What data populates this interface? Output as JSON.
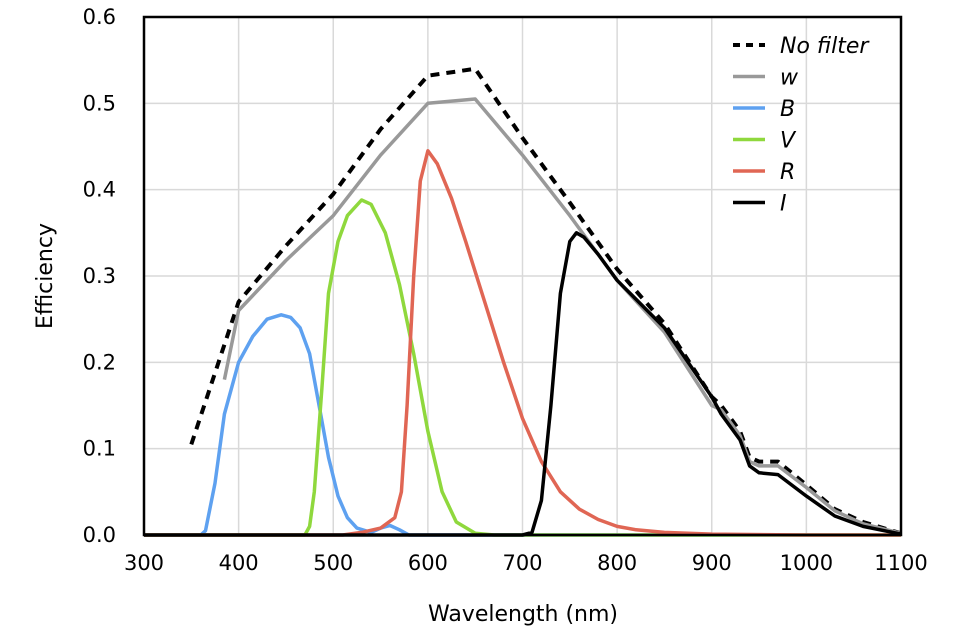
{
  "chart_data": {
    "type": "line",
    "title": "",
    "xlabel": "Wavelength (nm)",
    "ylabel": "Efficiency",
    "xlim": [
      300,
      1100
    ],
    "ylim": [
      0,
      0.6
    ],
    "xticks": [
      300,
      400,
      500,
      600,
      700,
      800,
      900,
      1000,
      1100
    ],
    "yticks": [
      0.0,
      0.1,
      0.2,
      0.3,
      0.4,
      0.5,
      0.6
    ],
    "ytick_labels": [
      "0.0",
      "0.1",
      "0.2",
      "0.3",
      "0.4",
      "0.5",
      "0.6"
    ],
    "grid": true,
    "legend_position": "top-right",
    "series": [
      {
        "name": "No filter",
        "color": "#000000",
        "dash": true,
        "points": [
          [
            350,
            0.105
          ],
          [
            400,
            0.27
          ],
          [
            450,
            0.335
          ],
          [
            500,
            0.395
          ],
          [
            550,
            0.47
          ],
          [
            600,
            0.532
          ],
          [
            650,
            0.54
          ],
          [
            700,
            0.46
          ],
          [
            750,
            0.385
          ],
          [
            800,
            0.308
          ],
          [
            850,
            0.245
          ],
          [
            900,
            0.16
          ],
          [
            910,
            0.15
          ],
          [
            920,
            0.135
          ],
          [
            930,
            0.12
          ],
          [
            940,
            0.09
          ],
          [
            950,
            0.085
          ],
          [
            970,
            0.085
          ],
          [
            1000,
            0.058
          ],
          [
            1030,
            0.03
          ],
          [
            1060,
            0.015
          ],
          [
            1100,
            0.002
          ]
        ]
      },
      {
        "name": "w",
        "color": "#999999",
        "dash": false,
        "points": [
          [
            385,
            0.18
          ],
          [
            400,
            0.26
          ],
          [
            450,
            0.318
          ],
          [
            500,
            0.37
          ],
          [
            550,
            0.44
          ],
          [
            600,
            0.5
          ],
          [
            650,
            0.505
          ],
          [
            700,
            0.44
          ],
          [
            750,
            0.37
          ],
          [
            800,
            0.295
          ],
          [
            850,
            0.235
          ],
          [
            900,
            0.15
          ],
          [
            910,
            0.145
          ],
          [
            920,
            0.13
          ],
          [
            930,
            0.115
          ],
          [
            940,
            0.085
          ],
          [
            950,
            0.08
          ],
          [
            970,
            0.08
          ],
          [
            1000,
            0.055
          ],
          [
            1030,
            0.028
          ],
          [
            1060,
            0.013
          ],
          [
            1100,
            0.002
          ]
        ]
      },
      {
        "name": "B",
        "color": "#5ea1f0",
        "dash": false,
        "points": [
          [
            300,
            0.0
          ],
          [
            360,
            0.0
          ],
          [
            365,
            0.005
          ],
          [
            375,
            0.06
          ],
          [
            385,
            0.14
          ],
          [
            400,
            0.2
          ],
          [
            415,
            0.23
          ],
          [
            430,
            0.25
          ],
          [
            445,
            0.255
          ],
          [
            455,
            0.252
          ],
          [
            465,
            0.24
          ],
          [
            475,
            0.21
          ],
          [
            485,
            0.15
          ],
          [
            495,
            0.09
          ],
          [
            505,
            0.045
          ],
          [
            515,
            0.02
          ],
          [
            525,
            0.008
          ],
          [
            540,
            0.003
          ],
          [
            550,
            0.008
          ],
          [
            560,
            0.011
          ],
          [
            570,
            0.006
          ],
          [
            580,
            0.0
          ],
          [
            1100,
            0.0
          ]
        ]
      },
      {
        "name": "V",
        "color": "#8fd83d",
        "dash": false,
        "points": [
          [
            300,
            0.0
          ],
          [
            470,
            0.0
          ],
          [
            475,
            0.01
          ],
          [
            480,
            0.05
          ],
          [
            488,
            0.17
          ],
          [
            495,
            0.28
          ],
          [
            505,
            0.34
          ],
          [
            515,
            0.37
          ],
          [
            530,
            0.388
          ],
          [
            540,
            0.383
          ],
          [
            555,
            0.35
          ],
          [
            570,
            0.29
          ],
          [
            585,
            0.21
          ],
          [
            600,
            0.12
          ],
          [
            615,
            0.05
          ],
          [
            630,
            0.015
          ],
          [
            650,
            0.002
          ],
          [
            670,
            0.0
          ],
          [
            1100,
            0.0
          ]
        ]
      },
      {
        "name": "R",
        "color": "#e06654",
        "dash": false,
        "points": [
          [
            300,
            0.0
          ],
          [
            510,
            0.0
          ],
          [
            530,
            0.003
          ],
          [
            550,
            0.008
          ],
          [
            565,
            0.02
          ],
          [
            572,
            0.05
          ],
          [
            578,
            0.15
          ],
          [
            585,
            0.3
          ],
          [
            592,
            0.41
          ],
          [
            600,
            0.445
          ],
          [
            610,
            0.43
          ],
          [
            625,
            0.39
          ],
          [
            640,
            0.34
          ],
          [
            660,
            0.27
          ],
          [
            680,
            0.2
          ],
          [
            700,
            0.135
          ],
          [
            720,
            0.085
          ],
          [
            740,
            0.05
          ],
          [
            760,
            0.03
          ],
          [
            780,
            0.018
          ],
          [
            800,
            0.01
          ],
          [
            820,
            0.006
          ],
          [
            850,
            0.003
          ],
          [
            900,
            0.001
          ],
          [
            1000,
            0.0
          ],
          [
            1100,
            0.0
          ]
        ]
      },
      {
        "name": "I",
        "color": "#000000",
        "dash": false,
        "points": [
          [
            300,
            0.0
          ],
          [
            700,
            0.0
          ],
          [
            710,
            0.003
          ],
          [
            720,
            0.04
          ],
          [
            730,
            0.15
          ],
          [
            740,
            0.28
          ],
          [
            750,
            0.34
          ],
          [
            757,
            0.35
          ],
          [
            765,
            0.345
          ],
          [
            780,
            0.325
          ],
          [
            800,
            0.295
          ],
          [
            850,
            0.24
          ],
          [
            900,
            0.16
          ],
          [
            910,
            0.14
          ],
          [
            920,
            0.125
          ],
          [
            930,
            0.11
          ],
          [
            940,
            0.08
          ],
          [
            950,
            0.072
          ],
          [
            970,
            0.07
          ],
          [
            1000,
            0.045
          ],
          [
            1030,
            0.022
          ],
          [
            1060,
            0.01
          ],
          [
            1100,
            0.001
          ]
        ]
      }
    ]
  }
}
